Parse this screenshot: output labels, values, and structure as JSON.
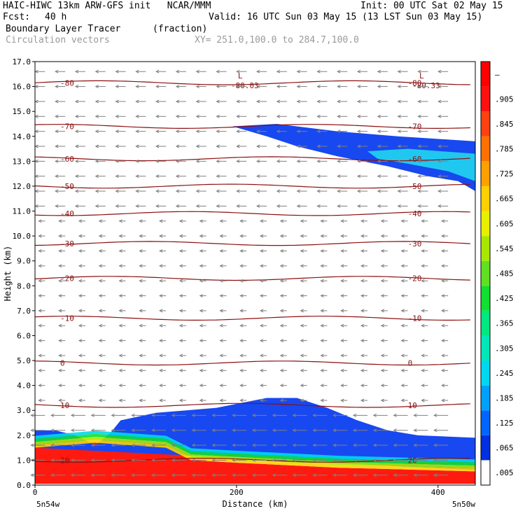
{
  "header": {
    "line1_left": "HAIC-HIWC 13km ARW-GFS init   NCAR/MMM",
    "line1_right": "Init: 00 UTC Sat 02 May 15",
    "fcst_label": "Fcst:",
    "fcst_value": "40 h",
    "valid": "Valid: 16 UTC Sun 03 May 15 (13 LST Sun 03 May 15)",
    "field_name": "Boundary Layer Tracer",
    "field_units": "(fraction)",
    "vector_name": "Circulation vectors",
    "xy_range": "XY= 251.0,100.0 to 284.7,100.0"
  },
  "colors": {
    "contour": "#8b1010",
    "vector": "#808080",
    "frame": "#000000"
  },
  "chart_data": {
    "type": "heatmap",
    "xlabel": "Distance (km)",
    "ylabel": "Height (km)",
    "xlim": [
      0,
      437
    ],
    "ylim": [
      0,
      17
    ],
    "x_ticks": [
      0,
      200,
      400
    ],
    "y_ticks": [
      "0.0",
      "1.0",
      "2.0",
      "3.0",
      "4.0",
      "5.0",
      "6.0",
      "7.0",
      "8.0",
      "9.0",
      "10.0",
      "11.0",
      "12.0",
      "13.0",
      "14.0",
      "15.0",
      "16.0",
      "17.0"
    ],
    "x_end_labels": {
      "left": "5n54w",
      "right": "5n50w"
    },
    "colorbar": {
      "labels": [
        ".005",
        ".065",
        ".125",
        ".185",
        ".245",
        ".305",
        ".365",
        ".425",
        ".485",
        ".545",
        ".605",
        ".665",
        ".725",
        ".785",
        ".845",
        ".905",
        "–"
      ],
      "colors": [
        "#ffffff",
        "#0030e0",
        "#0066ff",
        "#00a0ff",
        "#00d8f0",
        "#00e8b8",
        "#00e880",
        "#10e030",
        "#60e020",
        "#a8e800",
        "#e8f000",
        "#ffd000",
        "#ffa000",
        "#ff7000",
        "#ff4010",
        "#ff1010",
        "#ff0000"
      ]
    },
    "tracer_regions": [
      {
        "level": "red",
        "value": 0.9,
        "outline": [
          [
            0,
            1.5
          ],
          [
            0,
            0.05
          ],
          [
            437,
            0.05
          ],
          [
            437,
            0.55
          ],
          [
            300,
            0.7
          ],
          [
            200,
            0.9
          ],
          [
            155,
            1.0
          ],
          [
            130,
            1.5
          ],
          [
            60,
            1.7
          ],
          [
            0,
            1.8
          ]
        ]
      },
      {
        "level": "blue",
        "value": 0.05,
        "outline": [
          [
            0,
            2.2
          ],
          [
            20,
            2.2
          ],
          [
            40,
            2.0
          ],
          [
            60,
            1.6
          ],
          [
            75,
            2.1
          ],
          [
            85,
            2.6
          ],
          [
            120,
            2.9
          ],
          [
            180,
            3.1
          ],
          [
            230,
            3.5
          ],
          [
            260,
            3.5
          ],
          [
            290,
            3.1
          ],
          [
            320,
            2.6
          ],
          [
            350,
            2.2
          ],
          [
            380,
            2.0
          ],
          [
            437,
            1.9
          ],
          [
            437,
            0.6
          ],
          [
            0,
            1.5
          ]
        ]
      },
      {
        "level": "blue",
        "value": 0.05,
        "outline": [
          [
            196,
            14.4
          ],
          [
            240,
            14.5
          ],
          [
            300,
            14.2
          ],
          [
            360,
            14.0
          ],
          [
            437,
            13.8
          ],
          [
            437,
            11.8
          ],
          [
            420,
            12.2
          ],
          [
            390,
            12.4
          ],
          [
            350,
            12.8
          ],
          [
            300,
            13.2
          ],
          [
            260,
            13.6
          ],
          [
            230,
            14.0
          ]
        ]
      },
      {
        "level": "cyan",
        "value": 0.15,
        "outline": [
          [
            330,
            13.4
          ],
          [
            370,
            13.5
          ],
          [
            437,
            13.3
          ],
          [
            437,
            12.2
          ],
          [
            410,
            12.6
          ],
          [
            370,
            12.9
          ],
          [
            340,
            13.1
          ]
        ]
      }
    ],
    "temperature_contours": [
      {
        "value": -80,
        "label": "-80",
        "y": 16.15
      },
      {
        "value": -70,
        "label": "-70",
        "y": 14.4
      },
      {
        "value": -60,
        "label": "-60",
        "y": 13.1
      },
      {
        "value": -50,
        "label": "-50",
        "y": 12.0
      },
      {
        "value": -40,
        "label": "-40",
        "y": 10.9
      },
      {
        "value": -30,
        "label": "-30",
        "y": 9.7
      },
      {
        "value": -20,
        "label": "-20",
        "y": 8.3
      },
      {
        "value": -10,
        "label": "-10",
        "y": 6.7
      },
      {
        "value": 0,
        "label": "0",
        "y": 4.9
      },
      {
        "value": 10,
        "label": "10",
        "y": 3.2
      },
      {
        "value": 20,
        "label": "20",
        "y": 1.0
      }
    ],
    "minima": [
      {
        "label": "L",
        "value": "-80.03",
        "x": 200,
        "y": 16.1
      },
      {
        "label": "L",
        "value": "-80.33",
        "x": 380,
        "y": 16.1
      }
    ]
  }
}
